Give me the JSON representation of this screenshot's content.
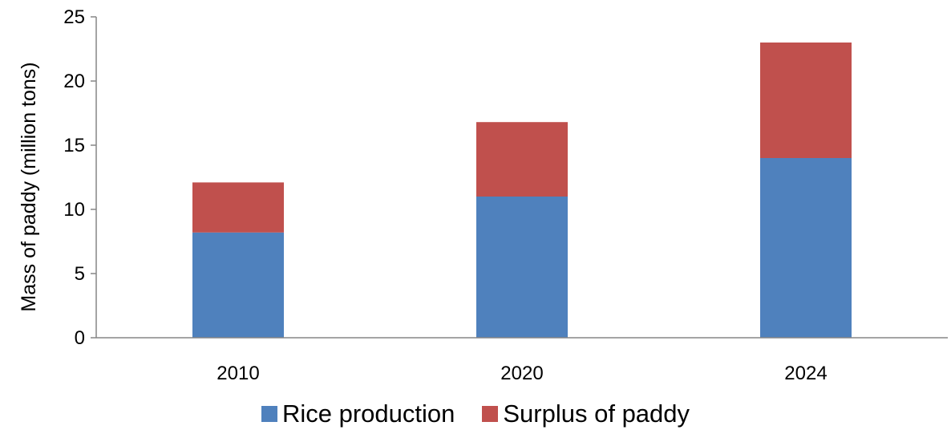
{
  "chart_data": {
    "type": "bar",
    "stacked": true,
    "categories": [
      "2010",
      "2020",
      "2024"
    ],
    "series": [
      {
        "name": "Rice production",
        "color": "#4f81bd",
        "values": [
          8.2,
          11.0,
          14.0
        ]
      },
      {
        "name": "Surplus of paddy",
        "color": "#c0504d",
        "values": [
          3.9,
          5.8,
          9.0
        ]
      }
    ],
    "ylabel": "Mass of paddy (million tons)",
    "xlabel": "",
    "ylim": [
      0,
      25
    ],
    "yticks": [
      "0",
      "5",
      "10",
      "15",
      "20",
      "25"
    ],
    "grid": false,
    "legend_position": "bottom"
  }
}
